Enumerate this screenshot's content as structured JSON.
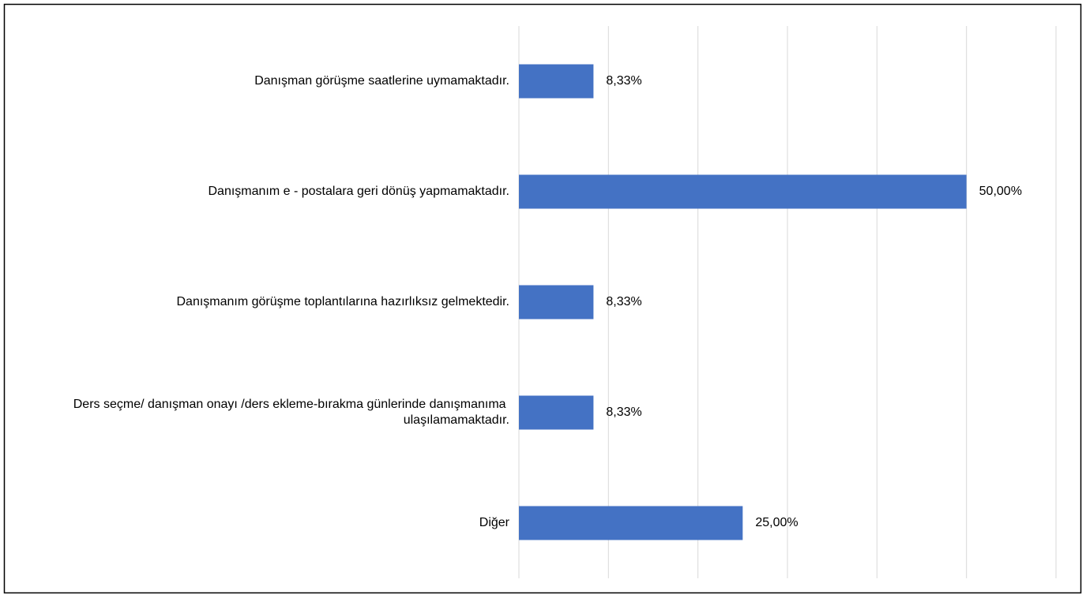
{
  "chart_data": {
    "type": "barh",
    "categories": [
      "Danışman görüşme saatlerine uymamaktadır.",
      "Danışmanım e - postalara geri dönüş yapmamaktadır.",
      "Danışmanım görüşme toplantılarına hazırlıksız gelmektedir.",
      "Ders seçme/ danışman onayı /ders ekleme-bırakma günlerinde danışmanıma ulaşılamamaktadır.",
      "Diğer"
    ],
    "values": [
      8.33,
      50,
      8.33,
      8.33,
      25
    ],
    "value_labels": [
      "8,33%",
      "50,00%",
      "8,33%",
      "8,33%",
      "25,00%"
    ],
    "color": "#4472c4",
    "xlim": [
      0,
      60
    ],
    "xticks": [
      0,
      10,
      20,
      30,
      40,
      50,
      60
    ],
    "grid": true
  }
}
